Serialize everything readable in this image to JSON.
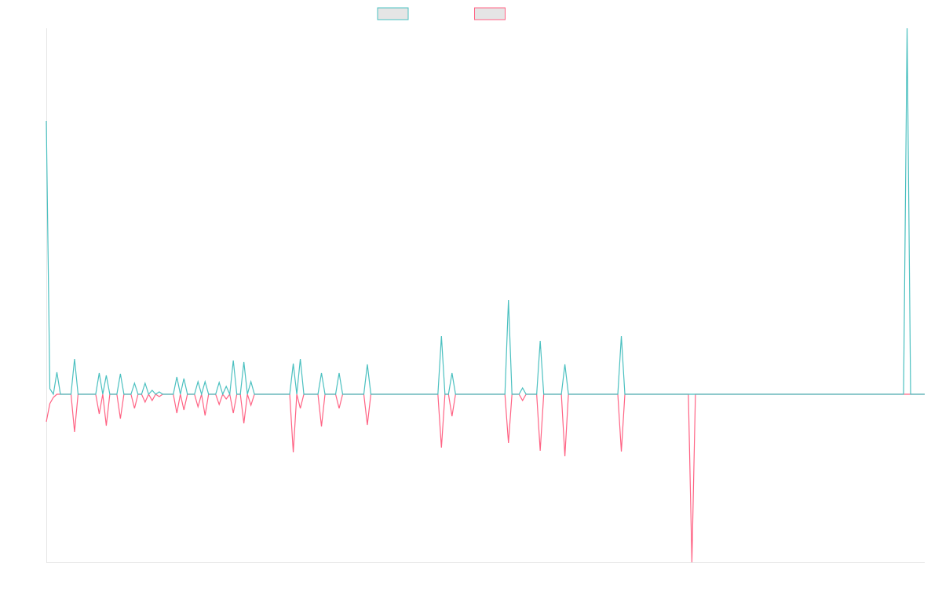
{
  "chart_data": {
    "type": "line",
    "ylim": [
      -214,
      466
    ],
    "legend": "top",
    "series": [
      {
        "color": "#ff6384",
        "values": [
          -35,
          -12,
          -4,
          0,
          0,
          0,
          0,
          0,
          -48,
          0,
          0,
          0,
          0,
          0,
          0,
          -25,
          0,
          -40,
          0,
          0,
          0,
          -31,
          0,
          0,
          0,
          -18,
          0,
          0,
          -10,
          0,
          -8,
          0,
          -3,
          0,
          0,
          0,
          0,
          -24,
          0,
          -20,
          0,
          0,
          0,
          -16,
          0,
          -27,
          0,
          0,
          0,
          -13,
          0,
          -6,
          0,
          -24,
          0,
          0,
          -37,
          0,
          -14,
          0,
          0,
          0,
          0,
          0,
          0,
          0,
          0,
          0,
          0,
          0,
          -74,
          0,
          -18,
          0,
          0,
          0,
          0,
          0,
          -41,
          0,
          0,
          0,
          0,
          -18,
          0,
          0,
          0,
          0,
          0,
          0,
          0,
          -39,
          0,
          0,
          0,
          0,
          0,
          0,
          0,
          0,
          0,
          0,
          0,
          0,
          0,
          0,
          0,
          0,
          0,
          0,
          0,
          0,
          -68,
          0,
          0,
          -28,
          0,
          0,
          0,
          0,
          0,
          0,
          0,
          0,
          0,
          0,
          0,
          0,
          0,
          0,
          0,
          -62,
          0,
          0,
          0,
          -8,
          0,
          0,
          0,
          0,
          -72,
          0,
          0,
          0,
          0,
          0,
          0,
          -79,
          0,
          0,
          0,
          0,
          0,
          0,
          0,
          0,
          0,
          0,
          0,
          0,
          0,
          0,
          0,
          -73,
          0,
          0,
          0,
          0,
          0,
          0,
          0,
          0,
          0,
          0,
          0,
          0,
          0,
          0,
          0,
          0,
          0,
          0,
          0,
          -214,
          0,
          0,
          0,
          0,
          0,
          0,
          0,
          0,
          0,
          0,
          0,
          0,
          0,
          0,
          0,
          0,
          0,
          0,
          0,
          0,
          0,
          0,
          0,
          0,
          0,
          0,
          0,
          0,
          0,
          0,
          0,
          0,
          0,
          0,
          0,
          0,
          0,
          0,
          0,
          0,
          0,
          0,
          0,
          0,
          0,
          0,
          0,
          0,
          0,
          0,
          0,
          0,
          0,
          0,
          0,
          0,
          0,
          0,
          0,
          0,
          0,
          0,
          0,
          0,
          0,
          0
        ]
      },
      {
        "color": "#4bc0c0",
        "values": [
          348,
          7,
          0,
          28,
          0,
          0,
          0,
          0,
          45,
          0,
          0,
          0,
          0,
          0,
          0,
          27,
          0,
          24,
          0,
          0,
          0,
          26,
          0,
          0,
          0,
          14,
          0,
          0,
          14,
          0,
          5,
          0,
          3,
          0,
          0,
          0,
          0,
          22,
          0,
          20,
          0,
          0,
          0,
          16,
          0,
          16,
          0,
          0,
          0,
          15,
          0,
          10,
          0,
          43,
          0,
          0,
          41,
          0,
          16,
          0,
          0,
          0,
          0,
          0,
          0,
          0,
          0,
          0,
          0,
          0,
          39,
          0,
          45,
          0,
          0,
          0,
          0,
          0,
          27,
          0,
          0,
          0,
          0,
          27,
          0,
          0,
          0,
          0,
          0,
          0,
          0,
          38,
          0,
          0,
          0,
          0,
          0,
          0,
          0,
          0,
          0,
          0,
          0,
          0,
          0,
          0,
          0,
          0,
          0,
          0,
          0,
          0,
          74,
          0,
          0,
          27,
          0,
          0,
          0,
          0,
          0,
          0,
          0,
          0,
          0,
          0,
          0,
          0,
          0,
          0,
          0,
          120,
          0,
          0,
          0,
          8,
          0,
          0,
          0,
          0,
          68,
          0,
          0,
          0,
          0,
          0,
          0,
          38,
          0,
          0,
          0,
          0,
          0,
          0,
          0,
          0,
          0,
          0,
          0,
          0,
          0,
          0,
          0,
          74,
          0,
          0,
          0,
          0,
          0,
          0,
          0,
          0,
          0,
          0,
          0,
          0,
          0,
          0,
          0,
          0,
          0,
          0,
          0,
          0,
          0,
          0,
          0,
          0,
          0,
          0,
          0,
          0,
          0,
          0,
          0,
          0,
          0,
          0,
          0,
          0,
          0,
          0,
          0,
          0,
          0,
          0,
          0,
          0,
          0,
          0,
          0,
          0,
          0,
          0,
          0,
          0,
          0,
          0,
          0,
          0,
          0,
          0,
          0,
          0,
          0,
          0,
          0,
          0,
          0,
          0,
          0,
          0,
          0,
          0,
          0,
          0,
          0,
          0,
          0,
          0,
          0,
          0,
          0,
          0,
          466,
          0,
          0,
          0,
          0,
          0
        ]
      }
    ]
  }
}
